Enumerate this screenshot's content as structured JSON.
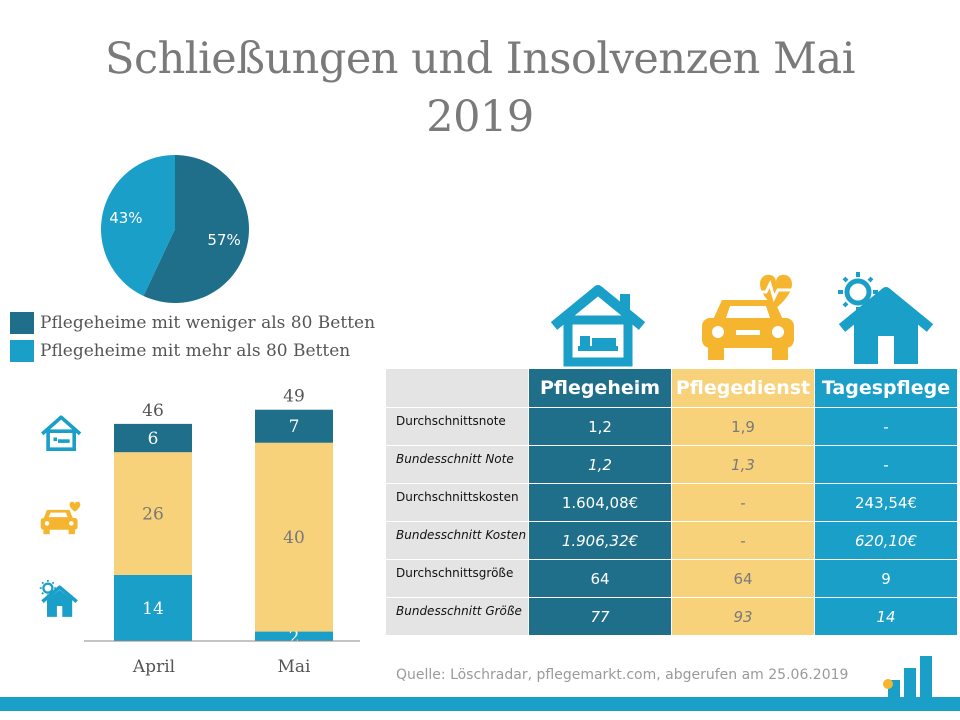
{
  "title_line1": "Schließungen und Insolvenzen Mai",
  "title_line2": "2019",
  "colors": {
    "dark_teal": "#1f6f8b",
    "light_blue": "#1a9fc8",
    "yellow": "#f7d27b",
    "gray": "#e4e4e4"
  },
  "chart_data": [
    {
      "type": "pie",
      "title": "",
      "slices": [
        {
          "label": "Pflegeheime mit weniger als 80 Betten",
          "value": 57,
          "display": "57%"
        },
        {
          "label": "Pflegeheime mit mehr als 80 Betten",
          "value": 43,
          "display": "43%"
        }
      ],
      "legend": [
        "Pflegeheime mit weniger als 80 Betten",
        "Pflegeheime mit mehr als 80 Betten"
      ]
    },
    {
      "type": "bar",
      "stacked": true,
      "categories": [
        "April",
        "Mai"
      ],
      "series": [
        {
          "name": "Tagespflege",
          "icon": "sun-house-icon",
          "values": [
            14,
            2
          ]
        },
        {
          "name": "Pflegedienst",
          "icon": "car-heart-icon",
          "values": [
            26,
            40
          ]
        },
        {
          "name": "Pflegeheim",
          "icon": "house-bed-icon",
          "values": [
            6,
            7
          ]
        }
      ],
      "totals": [
        46,
        49
      ],
      "ylim": [
        0,
        49
      ]
    },
    {
      "type": "table",
      "columns": [
        "Pflegeheim",
        "Pflegedienst",
        "Tagespflege"
      ],
      "rows": [
        {
          "label": "Durchschnittsnote",
          "italic": false,
          "cells": [
            "1,2",
            "1,9",
            "-"
          ]
        },
        {
          "label": "Bundesschnitt Note",
          "italic": true,
          "cells": [
            "1,2",
            "1,3",
            "-"
          ]
        },
        {
          "label": "Durchschnittskosten",
          "italic": false,
          "cells": [
            "1.604,08€",
            "-",
            "243,54€"
          ]
        },
        {
          "label": "Bundesschnitt Kosten",
          "italic": true,
          "cells": [
            "1.906,32€",
            "-",
            "620,10€"
          ]
        },
        {
          "label": "Durchschnittsgröße",
          "italic": false,
          "cells": [
            "64",
            "64",
            "9"
          ]
        },
        {
          "label": "Bundesschnitt Größe",
          "italic": true,
          "cells": [
            "77",
            "93",
            "14"
          ]
        }
      ]
    }
  ],
  "source": "Quelle: Löschradar, pflegemarkt.com, abgerufen am 25.06.2019"
}
